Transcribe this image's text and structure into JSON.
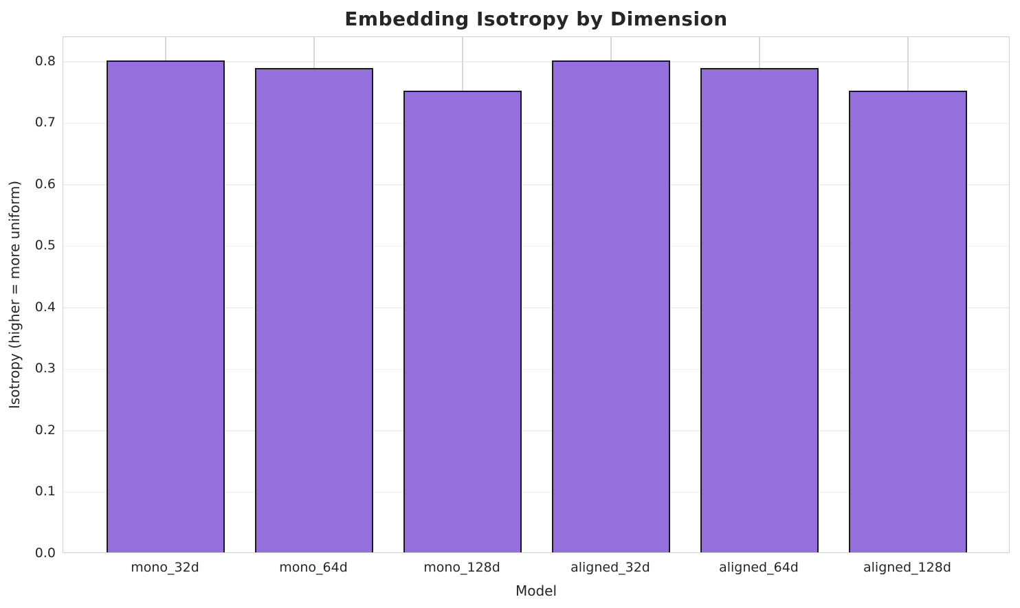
{
  "chart_data": {
    "type": "bar",
    "title": "Embedding Isotropy by Dimension",
    "xlabel": "Model",
    "ylabel": "Isotropy (higher = more uniform)",
    "categories": [
      "mono_32d",
      "mono_64d",
      "mono_128d",
      "aligned_32d",
      "aligned_64d",
      "aligned_128d"
    ],
    "values": [
      0.8,
      0.788,
      0.751,
      0.8,
      0.788,
      0.751
    ],
    "ylim": [
      0,
      0.84
    ],
    "yticks": [
      0.0,
      0.1,
      0.2,
      0.3,
      0.4,
      0.5,
      0.6,
      0.7,
      0.8
    ],
    "grid": true,
    "legend": "none",
    "bar_color": "#9370DB",
    "bar_edge_color": "#1a1a1a",
    "h_grid_color": "#f0f0f0",
    "v_grid_color": "#d8d8d8",
    "spine_color": "#d0d0d0",
    "text_color": "#262626",
    "background_color": "#ffffff"
  }
}
